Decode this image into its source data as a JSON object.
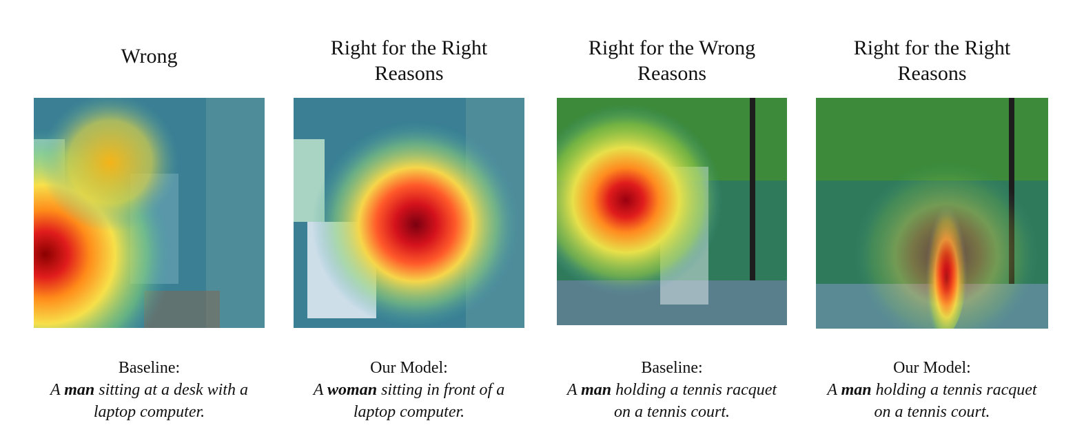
{
  "panels": [
    {
      "title_lines": [
        "Wrong"
      ],
      "caption_label": "Baseline:",
      "caption_pre": "A ",
      "caption_bold": "man",
      "caption_post_1": " sitting at a desk with a",
      "caption_post_2": "laptop computer.",
      "scene": "office",
      "heat_focus": "left-lamp"
    },
    {
      "title_lines": [
        "Right for the Right",
        "Reasons"
      ],
      "caption_label": "Our Model:",
      "caption_pre": "A ",
      "caption_bold": "woman",
      "caption_post_1": " sitting in front of a",
      "caption_post_2": "laptop computer.",
      "scene": "office",
      "heat_focus": "person"
    },
    {
      "title_lines": [
        "Right for the Wrong",
        "Reasons"
      ],
      "caption_label": "Baseline:",
      "caption_pre": "A ",
      "caption_bold": "man",
      "caption_post_1": " holding a tennis racquet",
      "caption_post_2": "on a tennis court.",
      "scene": "tennis",
      "heat_focus": "background"
    },
    {
      "title_lines": [
        "Right for the Right",
        "Reasons"
      ],
      "caption_label": "Our Model:",
      "caption_pre": "A ",
      "caption_bold": "man",
      "caption_post_1": " holding a tennis racquet",
      "caption_post_2": "on a tennis court.",
      "scene": "tennis",
      "heat_focus": "person"
    }
  ]
}
